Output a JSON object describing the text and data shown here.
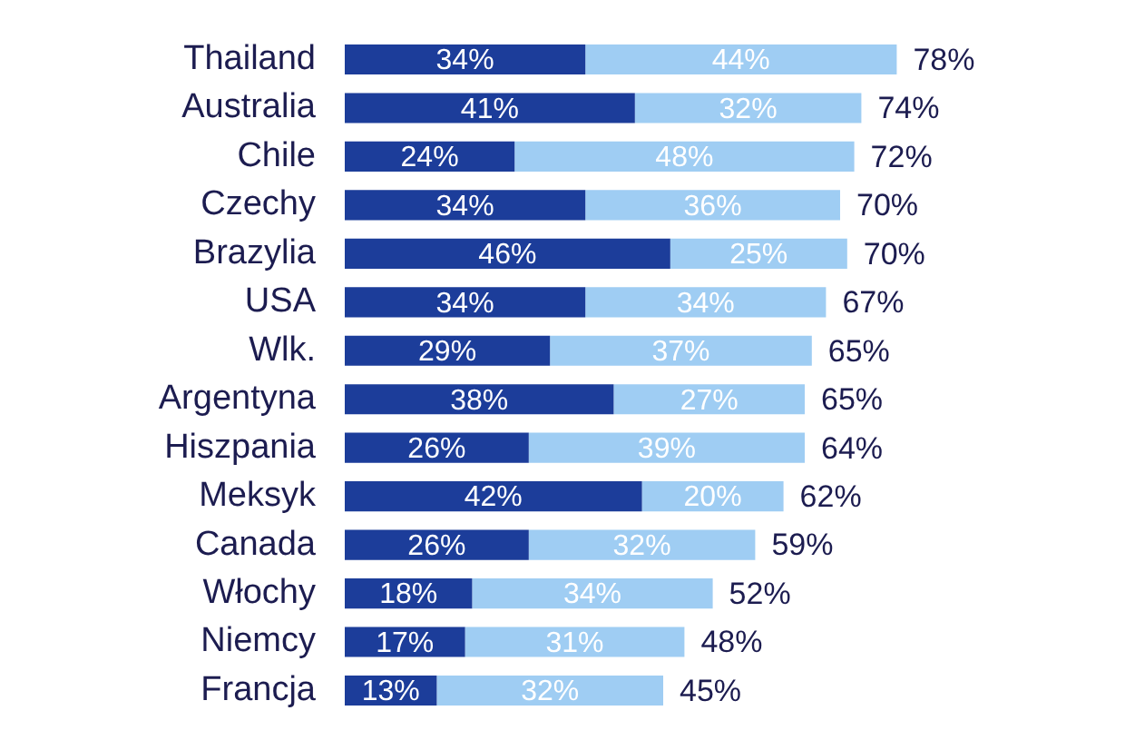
{
  "chart_data": {
    "type": "bar",
    "orientation": "horizontal",
    "stacked": true,
    "legend": false,
    "tick_labels": "y",
    "categories": [
      "Thailand",
      "Australia",
      "Chile",
      "Czechy",
      "Brazylia",
      "USA",
      "Wlk.",
      "Argentyna",
      "Hiszpania",
      "Meksyk",
      "Canada",
      "Włochy",
      "Niemcy",
      "Francja"
    ],
    "series": [
      {
        "color": "#1c3d9a",
        "values": [
          34,
          41,
          24,
          34,
          46,
          34,
          29,
          38,
          26,
          42,
          26,
          18,
          17,
          13
        ],
        "value_labels": [
          "34%",
          "41%",
          "24%",
          "34%",
          "46%",
          "34%",
          "29%",
          "38%",
          "26%",
          "42%",
          "26%",
          "18%",
          "17%",
          "13%"
        ]
      },
      {
        "color": "#9fcdf3",
        "values": [
          44,
          32,
          48,
          36,
          25,
          34,
          37,
          27,
          39,
          20,
          32,
          34,
          31,
          32
        ],
        "value_labels": [
          "44%",
          "32%",
          "48%",
          "36%",
          "25%",
          "34%",
          "37%",
          "27%",
          "39%",
          "20%",
          "32%",
          "34%",
          "31%",
          "32%"
        ]
      }
    ],
    "totals": [
      "78%",
      "74%",
      "72%",
      "70%",
      "70%",
      "67%",
      "65%",
      "65%",
      "64%",
      "62%",
      "59%",
      "52%",
      "48%",
      "45%"
    ]
  }
}
